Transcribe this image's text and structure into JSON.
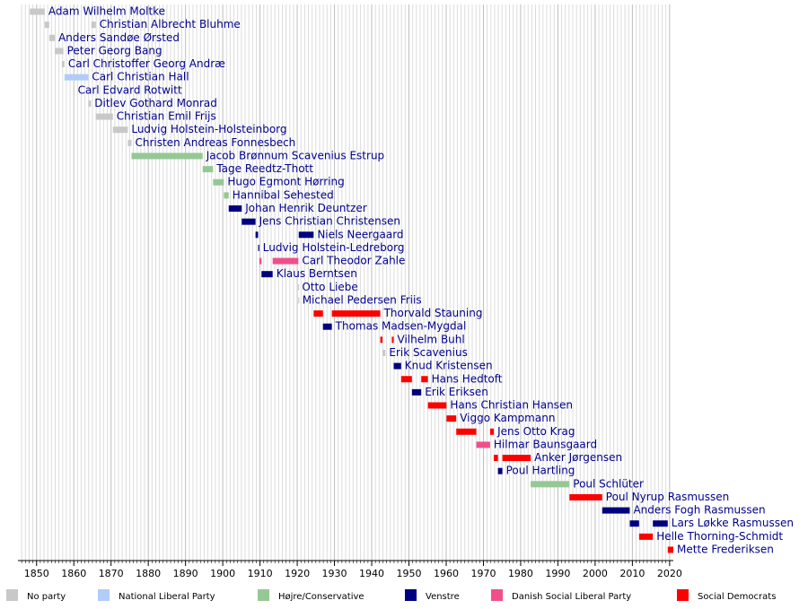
{
  "chart_data": {
    "type": "timeline",
    "xlim": [
      1845,
      2021
    ],
    "xticks": [
      1850,
      1860,
      1870,
      1880,
      1890,
      1900,
      1910,
      1920,
      1930,
      1940,
      1950,
      1960,
      1970,
      1980,
      1990,
      2000,
      2010,
      2020
    ],
    "minor_xticks": [
      1846,
      1847,
      1848,
      1849,
      1851,
      1852,
      1853,
      1854,
      1855,
      1856,
      1857,
      1858,
      1859,
      1861,
      1862,
      1863,
      1864,
      1865,
      1866,
      1867,
      1868,
      1869,
      1871,
      1872,
      1873,
      1874,
      1875,
      1876,
      1877,
      1878,
      1879,
      1881,
      1882,
      1883,
      1884,
      1885,
      1886,
      1887,
      1888,
      1889,
      1891,
      1892,
      1893,
      1894,
      1895,
      1896,
      1897,
      1898,
      1899,
      1901,
      1902,
      1903,
      1904,
      1905,
      1906,
      1907,
      1908,
      1909,
      1911,
      1912,
      1913,
      1914,
      1915,
      1916,
      1917,
      1918,
      1919,
      1921,
      1922,
      1923,
      1924,
      1925,
      1926,
      1927,
      1928,
      1929,
      1931,
      1932,
      1933,
      1934,
      1935,
      1936,
      1937,
      1938,
      1939,
      1941,
      1942,
      1943,
      1944,
      1945,
      1946,
      1947,
      1948,
      1949,
      1951,
      1952,
      1953,
      1954,
      1955,
      1956,
      1957,
      1958,
      1959,
      1961,
      1962,
      1963,
      1964,
      1965,
      1966,
      1967,
      1968,
      1969,
      1971,
      1972,
      1973,
      1974,
      1975,
      1976,
      1977,
      1978,
      1979,
      1981,
      1982,
      1983,
      1984,
      1985,
      1986,
      1987,
      1988,
      1989,
      1991,
      1992,
      1993,
      1994,
      1995,
      1996,
      1997,
      1998,
      1999,
      2001,
      2002,
      2003,
      2004,
      2005,
      2006,
      2007,
      2008,
      2009,
      2011,
      2012,
      2013,
      2014,
      2015,
      2016,
      2017,
      2018,
      2019
    ],
    "grid": true,
    "legend": [
      {
        "name": "No party",
        "color": "#c8c8c8"
      },
      {
        "name": "National Liberal Party",
        "color": "#b0cdf8"
      },
      {
        "name": "Højre/Conservative",
        "color": "#96c896"
      },
      {
        "name": "Venstre",
        "color": "#000080"
      },
      {
        "name": "Danish Social Liberal Party",
        "color": "#f0508a"
      },
      {
        "name": "Social Democrats",
        "color": "#ff0000"
      }
    ],
    "rows": [
      {
        "name": "Adam Wilhelm Moltke",
        "terms": [
          {
            "start": 1848.2,
            "end": 1852.2,
            "color": "#c8c8c8"
          }
        ]
      },
      {
        "name": "Christian Albrecht Bluhme",
        "terms": [
          {
            "start": 1852.2,
            "end": 1853.4,
            "color": "#c8c8c8"
          },
          {
            "start": 1864.7,
            "end": 1865.9,
            "color": "#c8c8c8"
          }
        ]
      },
      {
        "name": "Anders Sandøe Ørsted",
        "terms": [
          {
            "start": 1853.4,
            "end": 1854.9,
            "color": "#c8c8c8"
          }
        ]
      },
      {
        "name": "Peter Georg Bang",
        "terms": [
          {
            "start": 1854.9,
            "end": 1857.2,
            "color": "#c8c8c8"
          }
        ]
      },
      {
        "name": "Carl Christoffer Georg Andræ",
        "terms": [
          {
            "start": 1856.8,
            "end": 1857.5,
            "color": "#c8c8c8"
          }
        ]
      },
      {
        "name": "Carl Christian Hall",
        "terms": [
          {
            "start": 1857.5,
            "end": 1859.9,
            "color": "#b0cdf8"
          },
          {
            "start": 1860.1,
            "end": 1863.9,
            "color": "#b0cdf8"
          }
        ]
      },
      {
        "name": "Carl Edvard Rotwitt",
        "terms": [
          {
            "start": 1859.9,
            "end": 1860.1,
            "color": "#c8c8c8"
          }
        ]
      },
      {
        "name": "Ditlev Gothard Monrad",
        "terms": [
          {
            "start": 1863.9,
            "end": 1864.6,
            "color": "#c8c8c8"
          }
        ]
      },
      {
        "name": "Christian Emil Frijs",
        "terms": [
          {
            "start": 1865.9,
            "end": 1870.5,
            "color": "#c8c8c8"
          }
        ]
      },
      {
        "name": "Ludvig Holstein-Holsteinborg",
        "terms": [
          {
            "start": 1870.5,
            "end": 1874.5,
            "color": "#c8c8c8"
          }
        ]
      },
      {
        "name": "Christen Andreas Fonnesbech",
        "terms": [
          {
            "start": 1874.5,
            "end": 1875.5,
            "color": "#c8c8c8"
          }
        ]
      },
      {
        "name": "Jacob Brønnum Scavenius Estrup",
        "terms": [
          {
            "start": 1875.5,
            "end": 1894.6,
            "color": "#96c896"
          }
        ]
      },
      {
        "name": "Tage Reedtz-Thott",
        "terms": [
          {
            "start": 1894.6,
            "end": 1897.4,
            "color": "#96c896"
          }
        ]
      },
      {
        "name": "Hugo Egmont Hørring",
        "terms": [
          {
            "start": 1897.4,
            "end": 1900.3,
            "color": "#96c896"
          }
        ]
      },
      {
        "name": "Hannibal Sehested",
        "terms": [
          {
            "start": 1900.3,
            "end": 1901.6,
            "color": "#96c896"
          }
        ]
      },
      {
        "name": "Johan Henrik Deuntzer",
        "terms": [
          {
            "start": 1901.6,
            "end": 1905.1,
            "color": "#000080"
          }
        ]
      },
      {
        "name": "Jens Christian Christensen",
        "terms": [
          {
            "start": 1905.1,
            "end": 1908.8,
            "color": "#000080"
          }
        ]
      },
      {
        "name": "Niels Neergaard",
        "terms": [
          {
            "start": 1908.8,
            "end": 1909.5,
            "color": "#000080"
          },
          {
            "start": 1920.4,
            "end": 1924.4,
            "color": "#000080"
          }
        ]
      },
      {
        "name": "Ludvig Holstein-Ledreborg",
        "terms": [
          {
            "start": 1909.5,
            "end": 1909.8,
            "color": "#000080"
          }
        ]
      },
      {
        "name": "Carl Theodor Zahle",
        "terms": [
          {
            "start": 1909.8,
            "end": 1910.4,
            "color": "#f0508a"
          },
          {
            "start": 1913.4,
            "end": 1920.3,
            "color": "#f0508a"
          }
        ]
      },
      {
        "name": "Klaus Berntsen",
        "terms": [
          {
            "start": 1910.4,
            "end": 1913.4,
            "color": "#000080"
          }
        ]
      },
      {
        "name": "Otto Liebe",
        "terms": [
          {
            "start": 1920.25,
            "end": 1920.3,
            "color": "#c8c8c8"
          }
        ]
      },
      {
        "name": "Michael Pedersen Friis",
        "terms": [
          {
            "start": 1920.3,
            "end": 1920.4,
            "color": "#c8c8c8"
          }
        ]
      },
      {
        "name": "Thorvald Stauning",
        "terms": [
          {
            "start": 1924.4,
            "end": 1926.9,
            "color": "#ff0000"
          },
          {
            "start": 1929.3,
            "end": 1942.3,
            "color": "#ff0000"
          }
        ]
      },
      {
        "name": "Thomas Madsen-Mygdal",
        "terms": [
          {
            "start": 1926.9,
            "end": 1929.3,
            "color": "#000080"
          }
        ]
      },
      {
        "name": "Vilhelm Buhl",
        "terms": [
          {
            "start": 1942.3,
            "end": 1942.9,
            "color": "#ff0000"
          },
          {
            "start": 1945.4,
            "end": 1945.9,
            "color": "#ff0000"
          }
        ]
      },
      {
        "name": "Erik Scavenius",
        "terms": [
          {
            "start": 1942.9,
            "end": 1943.7,
            "color": "#c8c8c8"
          }
        ]
      },
      {
        "name": "Knud Kristensen",
        "terms": [
          {
            "start": 1945.9,
            "end": 1947.9,
            "color": "#000080"
          }
        ]
      },
      {
        "name": "Hans Hedtoft",
        "terms": [
          {
            "start": 1947.9,
            "end": 1950.8,
            "color": "#ff0000"
          },
          {
            "start": 1953.3,
            "end": 1955.1,
            "color": "#ff0000"
          }
        ]
      },
      {
        "name": "Erik Eriksen",
        "terms": [
          {
            "start": 1950.8,
            "end": 1953.3,
            "color": "#000080"
          }
        ]
      },
      {
        "name": "Hans Christian Hansen",
        "terms": [
          {
            "start": 1955.1,
            "end": 1960.1,
            "color": "#ff0000"
          }
        ]
      },
      {
        "name": "Viggo Kampmann",
        "terms": [
          {
            "start": 1960.1,
            "end": 1962.7,
            "color": "#ff0000"
          }
        ]
      },
      {
        "name": "Jens Otto Krag",
        "terms": [
          {
            "start": 1962.7,
            "end": 1968.1,
            "color": "#ff0000"
          },
          {
            "start": 1971.8,
            "end": 1972.8,
            "color": "#ff0000"
          }
        ]
      },
      {
        "name": "Hilmar Baunsgaard",
        "terms": [
          {
            "start": 1968.1,
            "end": 1971.8,
            "color": "#f0508a"
          }
        ]
      },
      {
        "name": "Anker Jørgensen",
        "terms": [
          {
            "start": 1972.8,
            "end": 1973.9,
            "color": "#ff0000"
          },
          {
            "start": 1975.1,
            "end": 1982.7,
            "color": "#ff0000"
          }
        ]
      },
      {
        "name": "Poul Hartling",
        "terms": [
          {
            "start": 1973.9,
            "end": 1975.1,
            "color": "#000080"
          }
        ]
      },
      {
        "name": "Poul Schlüter",
        "terms": [
          {
            "start": 1982.7,
            "end": 1993.1,
            "color": "#96c896"
          }
        ]
      },
      {
        "name": "Poul Nyrup Rasmussen",
        "terms": [
          {
            "start": 1993.1,
            "end": 2001.9,
            "color": "#ff0000"
          }
        ]
      },
      {
        "name": "Anders Fogh Rasmussen",
        "terms": [
          {
            "start": 2001.9,
            "end": 2009.3,
            "color": "#000080"
          }
        ]
      },
      {
        "name": "Lars Løkke Rasmussen",
        "terms": [
          {
            "start": 2009.3,
            "end": 2011.8,
            "color": "#000080"
          },
          {
            "start": 2015.5,
            "end": 2019.5,
            "color": "#000080"
          }
        ]
      },
      {
        "name": "Helle Thorning-Schmidt",
        "terms": [
          {
            "start": 2011.8,
            "end": 2015.5,
            "color": "#ff0000"
          }
        ]
      },
      {
        "name": "Mette Frederiksen",
        "terms": [
          {
            "start": 2019.5,
            "end": 2021,
            "color": "#ff0000"
          }
        ]
      }
    ]
  }
}
